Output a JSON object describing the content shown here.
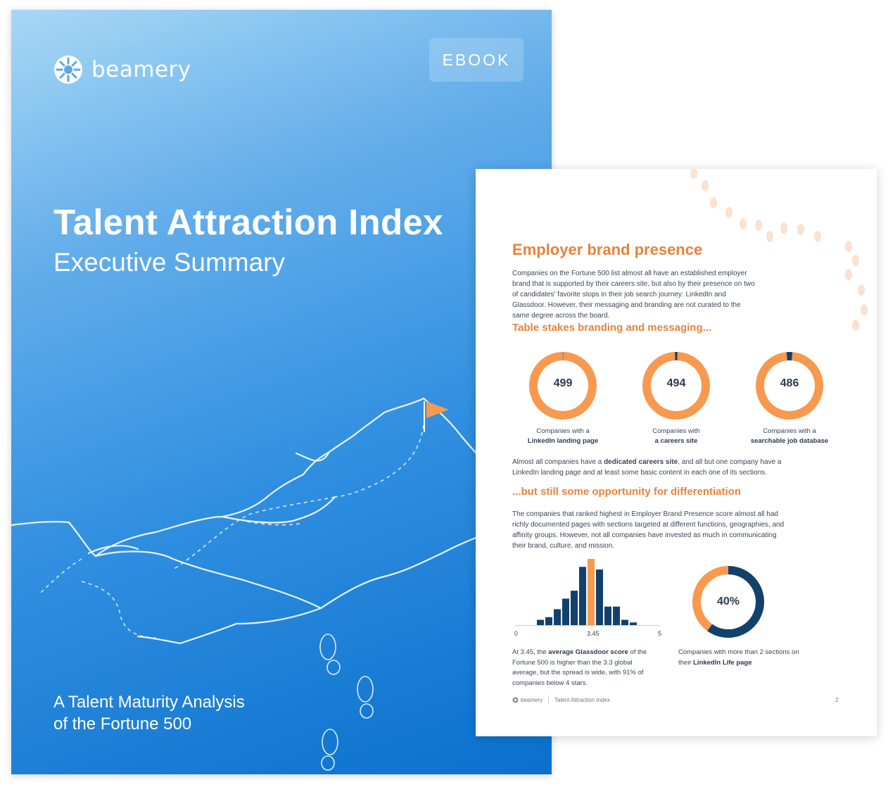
{
  "cover": {
    "brand": "beamery",
    "badge": "EBOOK",
    "title": "Talent Attraction Index",
    "subtitle": "Executive Summary",
    "footer_line1": "A Talent Maturity Analysis",
    "footer_line2": "of the Fortune 500"
  },
  "page": {
    "heading": "Employer brand presence",
    "intro": "Companies on the Fortune 500 list almost all have an established employer brand that is supported by their careers site, but also by their presence on two of candidates' favorite stops in their job search journey: LinkedIn and Glassdoor. However, their messaging and branding are not curated to the same degree across the board.",
    "subheading1": "Table stakes branding and messaging...",
    "stats": [
      {
        "value": "499",
        "cap_line1": "Companies with a",
        "cap_line2": "LinkedIn landing page"
      },
      {
        "value": "494",
        "cap_line1": "Companies with",
        "cap_line2": "a careers site"
      },
      {
        "value": "486",
        "cap_line1": "Companies with a",
        "cap_line2": "searchable job database"
      }
    ],
    "para2_a": "Almost all companies have a ",
    "para2_b": "dedicated careers site",
    "para2_c": ", and all but one company have a LinkedIn landing page and at least some basic content in each one of its sections.",
    "subheading2": "...but still some opportunity for differentiation",
    "para3": "The companies that ranked highest in Employer Brand Presence score almost all had richly documented pages with sections targeted at different functions, geographies, and affinity groups. However, not all companies have invested as much in communicating their brand, culture, and mission.",
    "hist_cap_a": "At 3.45, the ",
    "hist_cap_b": "average Glassdoor score",
    "hist_cap_c": " of the Fortune 500 is higher than the 3.3 global average, but the spread is wide, with 91% of companies below 4 stars.",
    "donut_value": "40%",
    "donut_cap_a": "Companies with more than 2 sections on their ",
    "donut_cap_b": "LinkedIn Life page",
    "footer_brand": "beamery",
    "footer_title": "Talent Attraction Index",
    "page_number": "2"
  },
  "colors": {
    "orange": "#f7994f",
    "navy": "#12416b",
    "heading": "#e8823a"
  },
  "chart_data": [
    {
      "type": "pie",
      "labels": [
        "Companies with a LinkedIn landing page",
        "Remaining"
      ],
      "values": [
        499,
        1
      ]
    },
    {
      "type": "pie",
      "labels": [
        "Companies with a careers site",
        "Remaining"
      ],
      "values": [
        494,
        6
      ]
    },
    {
      "type": "pie",
      "labels": [
        "Companies with a searchable job database",
        "Remaining"
      ],
      "values": [
        486,
        14
      ]
    },
    {
      "type": "bar",
      "xlim": [
        0,
        5
      ],
      "tick_labels": [
        "0",
        "3.45",
        "5"
      ],
      "highlight_index": 6,
      "values": [
        2,
        3,
        6,
        10,
        13,
        22,
        25,
        21,
        7,
        7,
        2,
        1
      ]
    },
    {
      "type": "pie",
      "labels": [
        "More than 2 sections",
        "Other"
      ],
      "values": [
        40,
        60
      ]
    }
  ]
}
